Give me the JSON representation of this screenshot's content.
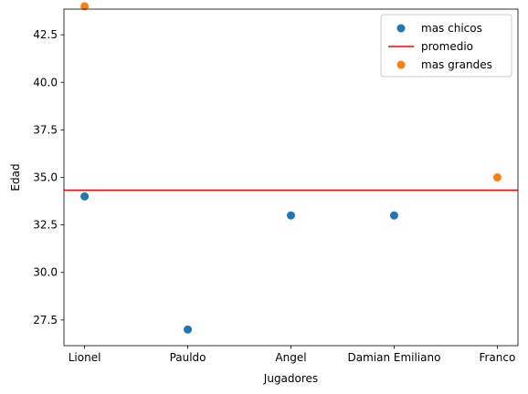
{
  "chart_data": {
    "type": "scatter",
    "categories": [
      "Lionel",
      "Pauldo",
      "Angel",
      "Damian Emiliano",
      "Franco"
    ],
    "xlabel": "Jugadores",
    "ylabel": "Edad",
    "ylim": [
      26.15,
      43.85
    ],
    "yticks": [
      "27.5",
      "30.0",
      "32.5",
      "35.0",
      "37.5",
      "40.0",
      "42.5"
    ],
    "grid": false,
    "legend_position": "top-right",
    "series": [
      {
        "name": "mas chicos",
        "kind": "scatter",
        "color": "#1f77b4",
        "points": [
          {
            "x": "Lionel",
            "y": 34
          },
          {
            "x": "Pauldo",
            "y": 27
          },
          {
            "x": "Angel",
            "y": 33
          },
          {
            "x": "Damian Emiliano",
            "y": 33
          }
        ]
      },
      {
        "name": "promedio",
        "kind": "hline",
        "color": "#ff0000",
        "y": 34.33
      },
      {
        "name": "mas grandes",
        "kind": "scatter",
        "color": "#ff7f0e",
        "points": [
          {
            "x": "Lionel",
            "y": 44
          },
          {
            "x": "Franco",
            "y": 35
          }
        ]
      }
    ]
  }
}
